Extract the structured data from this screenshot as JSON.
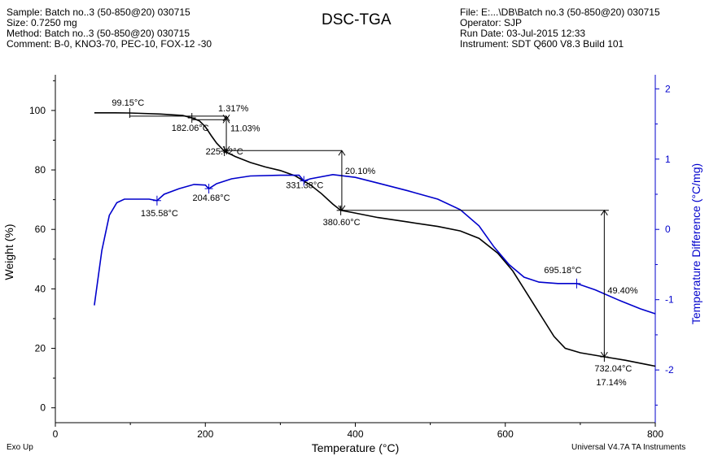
{
  "header": {
    "left_lines": [
      "Sample: Batch no..3 (50-850@20) 030715",
      "Size:  0.7250 mg",
      "Method: Batch no..3 (50-850@20) 030715",
      "Comment: B-0,  KNO3-70,   PEC-10,  FOX-12 -30"
    ],
    "right_lines": [
      "File: E:...\\DB\\Batch no.3 (50-850@20) 030715",
      "Operator: SJP",
      "Run Date: 03-Jul-2015 12:33",
      "Instrument: SDT Q600 V8.3 Build 101"
    ]
  },
  "footer": {
    "left": "Exo Up",
    "right": "Universal V4.7A TA Instruments"
  },
  "chart_data": {
    "type": "line",
    "title": "DSC-TGA",
    "xlabel": "Temperature (°C)",
    "ylabel_left": "Weight (%)",
    "ylabel_right": "Temperature Difference (°C/mg)",
    "xlim": [
      0,
      800
    ],
    "ylim_left": [
      -5,
      112
    ],
    "ylim_right": [
      -2.75,
      2.2
    ],
    "x_ticks": [
      0,
      200,
      400,
      600,
      800
    ],
    "y_left_ticks": [
      0,
      20,
      40,
      60,
      80,
      100
    ],
    "y_right_ticks": [
      -2,
      -1,
      0,
      1,
      2
    ],
    "colors": {
      "weight": "#000000",
      "dta": "#0000cc",
      "right_axis": "#0000cc"
    },
    "grid": false,
    "series": [
      {
        "axis": "left",
        "color": "#000000",
        "points": [
          [
            52,
            99.2
          ],
          [
            80,
            99.2
          ],
          [
            99.15,
            99.15
          ],
          [
            140,
            98.8
          ],
          [
            170,
            98.3
          ],
          [
            182.06,
            97.5
          ],
          [
            192,
            96.5
          ],
          [
            200,
            94.5
          ],
          [
            208,
            91.5
          ],
          [
            215,
            89
          ],
          [
            225.42,
            86.3
          ],
          [
            240,
            84.5
          ],
          [
            260,
            82.5
          ],
          [
            280,
            81
          ],
          [
            300,
            79.8
          ],
          [
            320,
            78
          ],
          [
            340,
            75
          ],
          [
            355,
            72
          ],
          [
            370,
            68.5
          ],
          [
            380.6,
            66.4
          ],
          [
            400,
            65.5
          ],
          [
            430,
            64
          ],
          [
            470,
            62.5
          ],
          [
            510,
            61
          ],
          [
            540,
            59.5
          ],
          [
            565,
            57
          ],
          [
            590,
            52
          ],
          [
            610,
            46
          ],
          [
            630,
            38
          ],
          [
            650,
            30
          ],
          [
            665,
            24
          ],
          [
            680,
            20
          ],
          [
            700,
            18.5
          ],
          [
            732.04,
            17.14
          ],
          [
            760,
            16
          ],
          [
            790,
            14.5
          ],
          [
            800,
            14
          ]
        ]
      },
      {
        "axis": "right",
        "color": "#0000cc",
        "points": [
          [
            52,
            -1.08
          ],
          [
            62,
            -0.3
          ],
          [
            72,
            0.2
          ],
          [
            82,
            0.38
          ],
          [
            92,
            0.43
          ],
          [
            110,
            0.43
          ],
          [
            125,
            0.43
          ],
          [
            135.58,
            0.41
          ],
          [
            145,
            0.5
          ],
          [
            165,
            0.58
          ],
          [
            185,
            0.64
          ],
          [
            200,
            0.63
          ],
          [
            204.68,
            0.58
          ],
          [
            215,
            0.65
          ],
          [
            235,
            0.72
          ],
          [
            260,
            0.76
          ],
          [
            300,
            0.77
          ],
          [
            325,
            0.77
          ],
          [
            331.38,
            0.69
          ],
          [
            340,
            0.72
          ],
          [
            370,
            0.78
          ],
          [
            400,
            0.74
          ],
          [
            430,
            0.66
          ],
          [
            470,
            0.55
          ],
          [
            510,
            0.43
          ],
          [
            540,
            0.28
          ],
          [
            565,
            0.05
          ],
          [
            585,
            -0.25
          ],
          [
            605,
            -0.5
          ],
          [
            625,
            -0.68
          ],
          [
            645,
            -0.75
          ],
          [
            670,
            -0.77
          ],
          [
            695.18,
            -0.77
          ],
          [
            720,
            -0.86
          ],
          [
            750,
            -1
          ],
          [
            780,
            -1.13
          ],
          [
            800,
            -1.2
          ]
        ]
      }
    ],
    "annotations": {
      "temperatures": [
        {
          "text": "99.15°C",
          "x": 99.15,
          "curve": "weight"
        },
        {
          "text": "182.06°C",
          "x": 182.06,
          "curve": "weight"
        },
        {
          "text": "225.42°C",
          "x": 225.42,
          "curve": "weight"
        },
        {
          "text": "380.60°C",
          "x": 380.6,
          "curve": "weight"
        },
        {
          "text": "732.04°C",
          "x": 732.04,
          "curve": "weight"
        },
        {
          "text": "135.58°C",
          "x": 135.58,
          "curve": "dta"
        },
        {
          "text": "204.68°C",
          "x": 204.68,
          "curve": "dta"
        },
        {
          "text": "331.38°C",
          "x": 331.38,
          "curve": "dta"
        },
        {
          "text": "695.18°C",
          "x": 695.18,
          "curve": "dta"
        }
      ],
      "weight_steps": [
        {
          "text": "1.317%",
          "x": 228,
          "from": 98.1,
          "to": 96.9
        },
        {
          "text": "11.03%",
          "x": 228,
          "from": 97.4,
          "to": 86.3
        },
        {
          "text": "20.10%",
          "x": 382,
          "from": 86.5,
          "to": 66.4
        },
        {
          "text": "49.40%",
          "x": 732,
          "from": 66.4,
          "to": 17.1
        }
      ],
      "residue": {
        "text": "17.14%",
        "x": 732.04
      }
    }
  }
}
